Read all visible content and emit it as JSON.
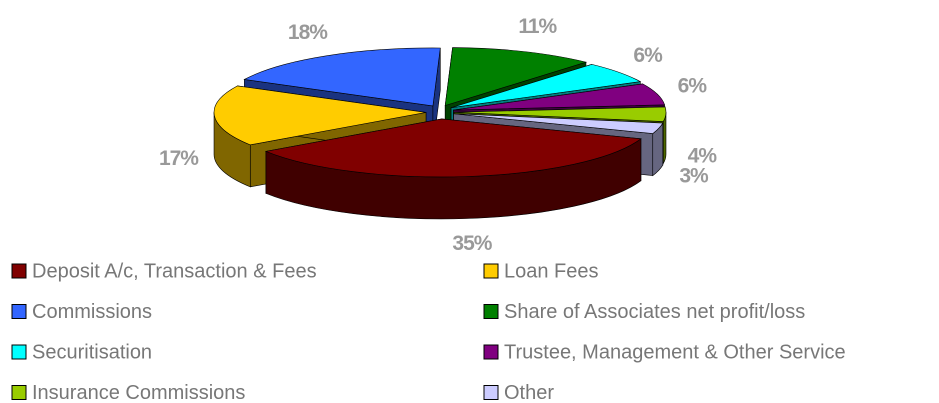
{
  "chart_data": {
    "type": "pie",
    "categories": [
      "Deposit A/c, Transaction & Fees",
      "Loan Fees",
      "Commissions",
      "Share of Associates net profit/loss",
      "Securitisation",
      "Trustee, Management & Other Service",
      "Insurance Commissions",
      "Other"
    ],
    "values": [
      35,
      17,
      18,
      11,
      6,
      6,
      4,
      3
    ],
    "value_labels": [
      "35%",
      "17%",
      "18%",
      "11%",
      "6%",
      "6%",
      "4%",
      "3%"
    ],
    "colors": [
      "#800000",
      "#ffcc00",
      "#3366ff",
      "#008000",
      "#00ffff",
      "#800080",
      "#99cc00",
      "#ccccff"
    ],
    "legend": "bottom"
  }
}
